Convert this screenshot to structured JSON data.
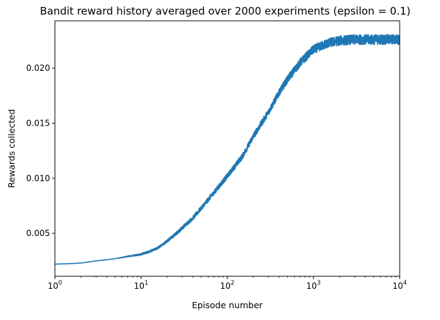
{
  "chart_data": {
    "type": "line",
    "title": "Bandit reward history averaged over 2000 experiments (epsilon = 0.1)",
    "xlabel": "Episode number",
    "ylabel": "Rewards collected",
    "xscale": "log",
    "xlim": [
      1,
      10000
    ],
    "ylim": [
      0.0011,
      0.0243
    ],
    "grid": false,
    "legend": "none",
    "x_ticks": [
      {
        "value": 1,
        "base": "10",
        "exp": "0"
      },
      {
        "value": 10,
        "base": "10",
        "exp": "1"
      },
      {
        "value": 100,
        "base": "10",
        "exp": "2"
      },
      {
        "value": 1000,
        "base": "10",
        "exp": "3"
      },
      {
        "value": 10000,
        "base": "10",
        "exp": "4"
      }
    ],
    "y_ticks": [
      {
        "value": 0.005,
        "label": "0.005"
      },
      {
        "value": 0.01,
        "label": "0.010"
      },
      {
        "value": 0.015,
        "label": "0.015"
      },
      {
        "value": 0.02,
        "label": "0.020"
      }
    ],
    "series": [
      {
        "color": "#1f77b4",
        "x": [
          1,
          1.5,
          2,
          3,
          4,
          5,
          7,
          10,
          12,
          15,
          18,
          20,
          25,
          30,
          40,
          50,
          70,
          100,
          150,
          200,
          300,
          400,
          500,
          700,
          1000,
          1500,
          2000,
          3000,
          5000,
          7000,
          10000
        ],
        "y": [
          0.0022,
          0.00225,
          0.0023,
          0.0025,
          0.0026,
          0.0027,
          0.0029,
          0.0031,
          0.0033,
          0.0036,
          0.004,
          0.0043,
          0.0049,
          0.0055,
          0.0064,
          0.0073,
          0.0087,
          0.0102,
          0.012,
          0.0138,
          0.016,
          0.0178,
          0.019,
          0.0205,
          0.0217,
          0.0223,
          0.0225,
          0.0226,
          0.0226,
          0.0226,
          0.0226
        ],
        "noise_band": [
          0,
          0,
          0,
          0,
          0,
          0,
          5e-05,
          8e-05,
          0.0001,
          0.0001,
          0.00012,
          0.00013,
          0.00015,
          0.00016,
          0.00018,
          0.0002,
          0.00022,
          0.00024,
          0.00026,
          0.00028,
          0.0003,
          0.00032,
          0.00035,
          0.00038,
          0.0004,
          0.00042,
          0.00044,
          0.00045,
          0.00046,
          0.00046,
          0.00046
        ]
      }
    ]
  }
}
